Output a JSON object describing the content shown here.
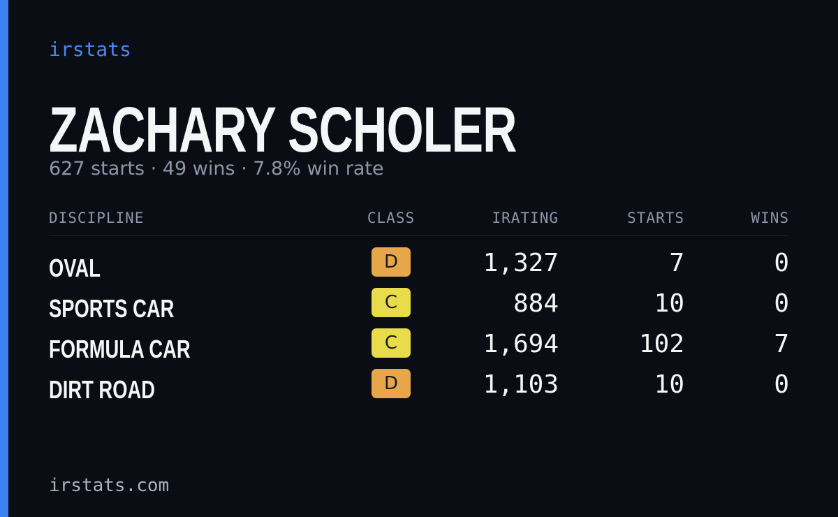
{
  "header": {
    "brand": "irstats",
    "name": "ZACHARY SCHOLER",
    "summary": "627 starts · 49 wins · 7.8% win rate"
  },
  "table": {
    "columns": [
      "DISCIPLINE",
      "CLASS",
      "IRATING",
      "STARTS",
      "WINS"
    ],
    "rows": [
      [
        "OVAL",
        "D",
        "1,327",
        "7",
        "0"
      ],
      [
        "SPORTS CAR",
        "C",
        "884",
        "10",
        "0"
      ],
      [
        "FORMULA CAR",
        "C",
        "1,694",
        "102",
        "7"
      ],
      [
        "DIRT ROAD",
        "D",
        "1,103",
        "10",
        "0"
      ]
    ]
  },
  "footer": {
    "url": "irstats.com"
  }
}
